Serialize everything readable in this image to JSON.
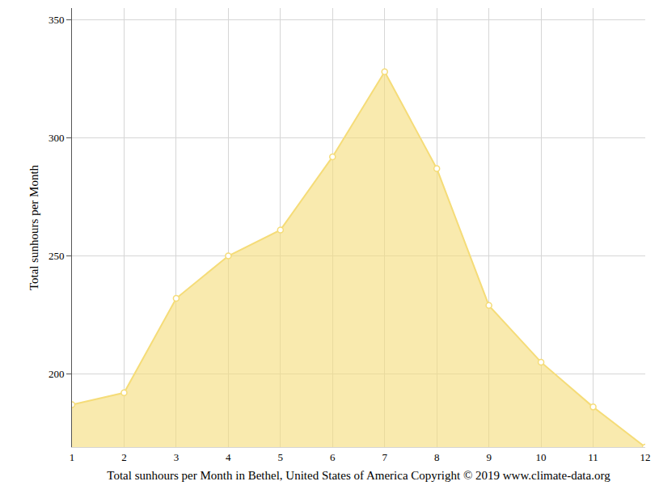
{
  "chart_data": {
    "type": "line",
    "x_label": "Total sunhours per Month in Bethel, United States of America Copyright © 2019 www.climate-data.org",
    "y_label": "Total sunhours per Month",
    "x": [
      1,
      2,
      3,
      4,
      5,
      6,
      7,
      8,
      9,
      10,
      11,
      12
    ],
    "values": [
      187,
      192,
      232,
      250,
      261,
      292,
      328,
      287,
      229,
      205,
      186,
      169
    ],
    "color": "#f5dc78",
    "marker": "circle",
    "xlim": [
      1,
      12
    ],
    "xticks": [
      1,
      2,
      3,
      4,
      5,
      6,
      7,
      8,
      9,
      10,
      11,
      12
    ],
    "ylim": [
      169,
      355
    ],
    "yticks": [
      200,
      250,
      300,
      350
    ],
    "grid": true
  }
}
